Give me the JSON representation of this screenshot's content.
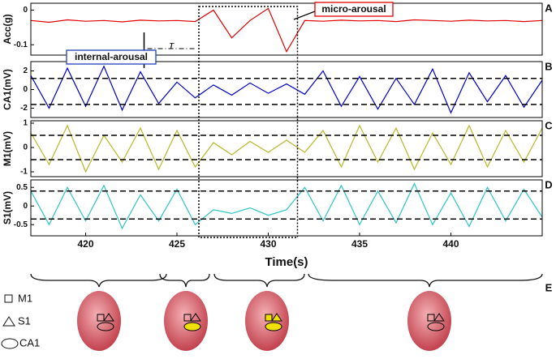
{
  "chart_data": [
    {
      "type": "line",
      "panel_label": "A",
      "ylabel": "Acc(g)",
      "xlim": [
        417,
        445
      ],
      "ylim": [
        -0.13,
        0.02
      ],
      "yticks": [
        0,
        -0.1
      ],
      "span": [
        426.2,
        431.6
      ],
      "marker_x": 423.2,
      "annotations": [
        "micro-arousal",
        "internal-arousal",
        "τ"
      ],
      "x": [
        417,
        418,
        419,
        420,
        421,
        422,
        423,
        424,
        425,
        426,
        427,
        428,
        429,
        430,
        431,
        432,
        433,
        434,
        435,
        436,
        437,
        438,
        439,
        440,
        441,
        442,
        443,
        444,
        445
      ],
      "series": [
        {
          "color": "#e00000",
          "values": [
            -0.03,
            -0.035,
            -0.028,
            -0.032,
            -0.03,
            -0.034,
            -0.029,
            -0.031,
            -0.03,
            -0.033,
            0.0,
            -0.08,
            -0.03,
            0.005,
            -0.12,
            -0.03,
            -0.032,
            -0.029,
            -0.031,
            -0.03,
            -0.033,
            -0.028,
            -0.03,
            -0.032,
            -0.029,
            -0.031,
            -0.03,
            -0.033,
            -0.03
          ]
        }
      ]
    },
    {
      "type": "line",
      "panel_label": "B",
      "ylabel": "CA1(mV)",
      "xlim": [
        417,
        445
      ],
      "ylim": [
        -3,
        3
      ],
      "yticks": [
        2,
        0,
        -2
      ],
      "thresholds": [
        1.2,
        -1.6
      ],
      "x": [
        417,
        418,
        419,
        420,
        421,
        422,
        423,
        424,
        425,
        426,
        427,
        428,
        429,
        430,
        431,
        432,
        433,
        434,
        435,
        436,
        437,
        438,
        439,
        440,
        441,
        442,
        443,
        444,
        445
      ],
      "series": [
        {
          "color": "#0000cc",
          "values": [
            1.5,
            -2,
            2.3,
            -1.8,
            2.5,
            -2.2,
            1.9,
            -1.5,
            0.8,
            -0.9,
            0.5,
            -0.6,
            0.7,
            -0.4,
            0.6,
            -0.5,
            2.0,
            -1.8,
            1.4,
            -2.1,
            1.2,
            -1.6,
            2.2,
            -2.5,
            1.8,
            -1.3,
            1.5,
            -1.9,
            1.0
          ]
        }
      ]
    },
    {
      "type": "line",
      "panel_label": "C",
      "ylabel": "M1(mV)",
      "xlim": [
        417,
        445
      ],
      "ylim": [
        -1.2,
        1.1
      ],
      "yticks": [
        1,
        0,
        -1
      ],
      "thresholds": [
        0.5,
        -0.5
      ],
      "x": [
        417,
        418,
        419,
        420,
        421,
        422,
        423,
        424,
        425,
        426,
        427,
        428,
        429,
        430,
        431,
        432,
        433,
        434,
        435,
        436,
        437,
        438,
        439,
        440,
        441,
        442,
        443,
        444,
        445
      ],
      "series": [
        {
          "color": "#b8b82a",
          "values": [
            0.6,
            -0.7,
            0.9,
            -1.0,
            0.5,
            -0.6,
            0.8,
            -0.9,
            0.7,
            -0.8,
            0.2,
            -0.3,
            0.25,
            -0.2,
            0.3,
            -0.2,
            0.7,
            -0.8,
            0.9,
            -0.6,
            0.8,
            -0.9,
            0.6,
            -0.7,
            0.9,
            -0.8,
            0.7,
            -0.6,
            0.8
          ]
        }
      ]
    },
    {
      "type": "line",
      "panel_label": "D",
      "ylabel": "S1(mV)",
      "xlabel": "Time(s)",
      "xlim": [
        417,
        445
      ],
      "xticks": [
        420,
        425,
        430,
        435,
        440
      ],
      "ylim": [
        -0.8,
        0.7
      ],
      "yticks": [
        0.5,
        0,
        -0.5
      ],
      "thresholds": [
        0.4,
        -0.35
      ],
      "x": [
        417,
        418,
        419,
        420,
        421,
        422,
        423,
        424,
        425,
        426,
        427,
        428,
        429,
        430,
        431,
        432,
        433,
        434,
        435,
        436,
        437,
        438,
        439,
        440,
        441,
        442,
        443,
        444,
        445
      ],
      "series": [
        {
          "color": "#2ec4c4",
          "values": [
            0.4,
            -0.5,
            0.5,
            -0.4,
            0.55,
            -0.6,
            0.3,
            -0.4,
            0.45,
            -0.5,
            -0.1,
            -0.2,
            -0.05,
            -0.25,
            -0.1,
            0.5,
            -0.4,
            0.55,
            -0.5,
            0.4,
            -0.45,
            0.6,
            -0.5,
            0.35,
            -0.55,
            0.5,
            -0.4,
            0.45,
            -0.3
          ]
        }
      ]
    }
  ],
  "brain_panel": {
    "label": "E",
    "legend": [
      "M1",
      "S1",
      "CA1"
    ]
  }
}
